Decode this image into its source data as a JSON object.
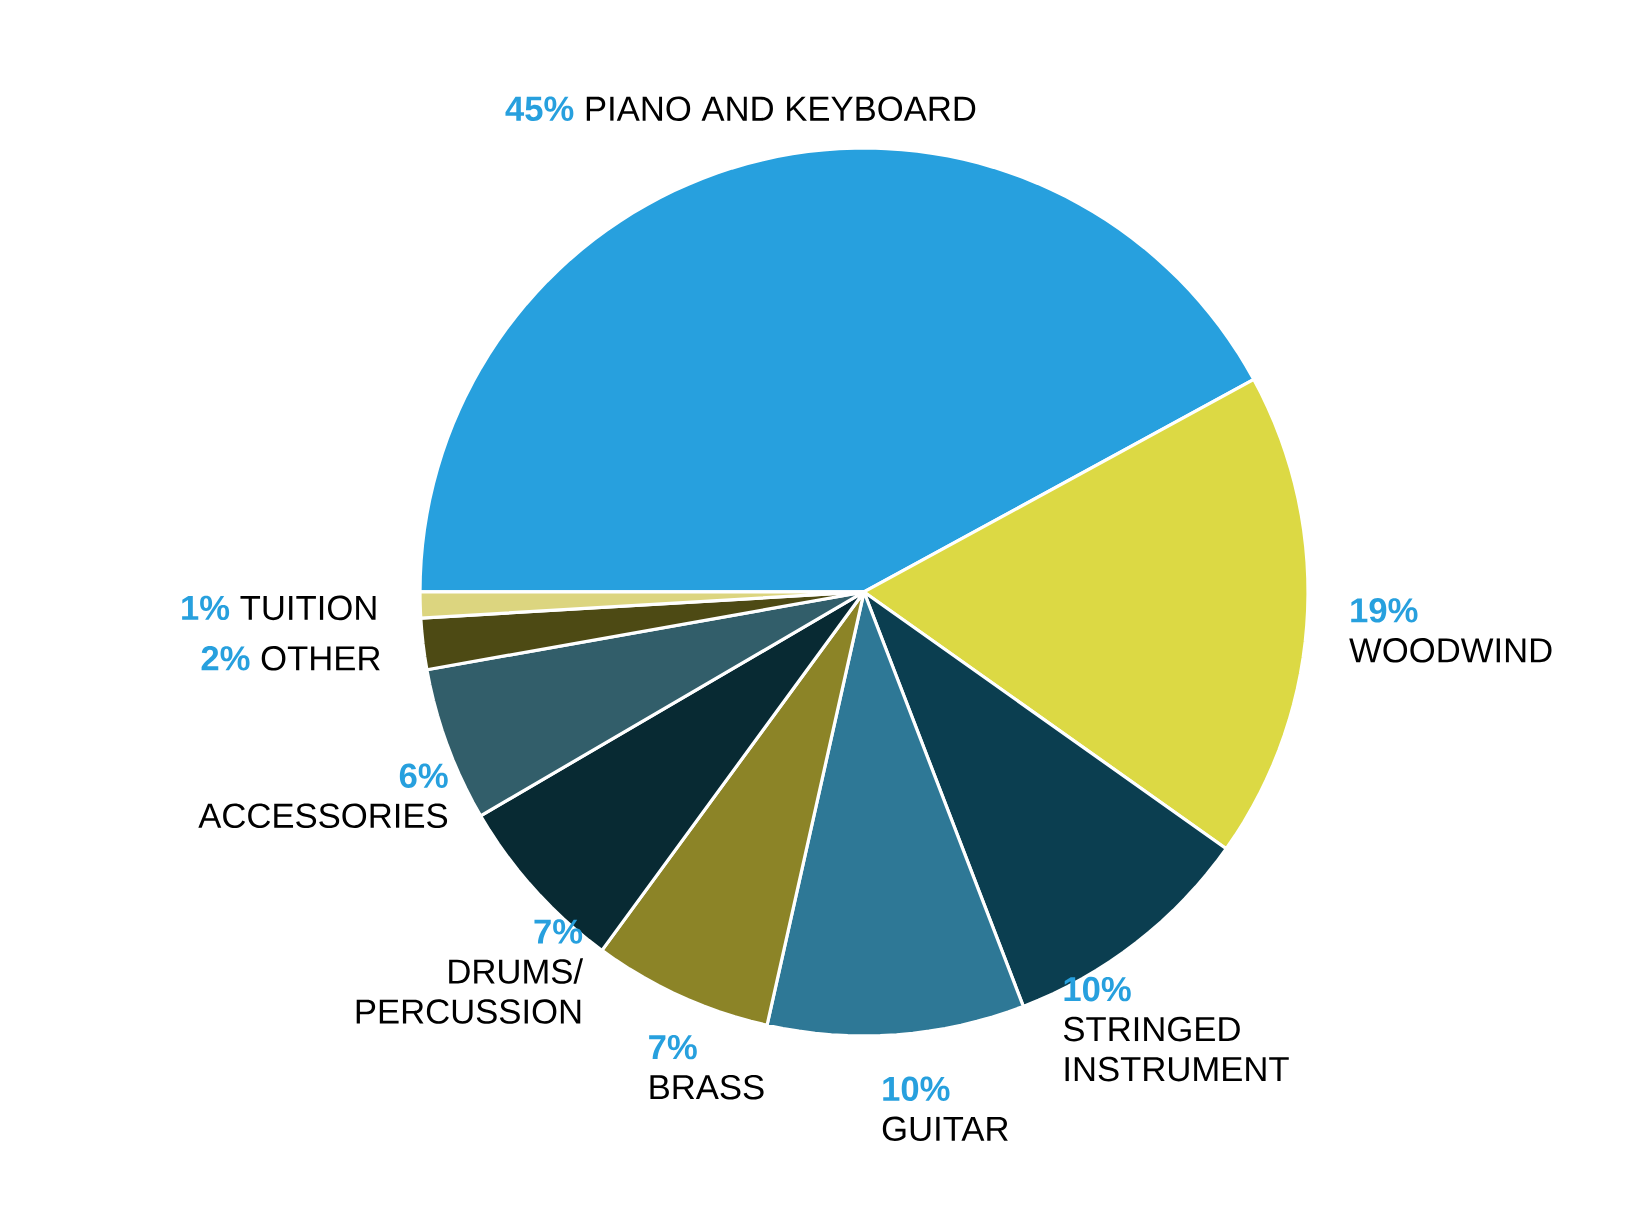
{
  "chart_data": {
    "type": "pie",
    "categories": [
      "PIANO AND KEYBOARD",
      "WOODWIND",
      "STRINGED INSTRUMENT",
      "GUITAR",
      "BRASS",
      "DRUMS/ PERCUSSION",
      "ACCESSORIES",
      "OTHER",
      "TUITION"
    ],
    "values": [
      45,
      19,
      10,
      10,
      7,
      7,
      6,
      2,
      1
    ],
    "colors": [
      "#27a0de",
      "#dcd944",
      "#0b3e50",
      "#2e7896",
      "#8c8427",
      "#082a33",
      "#325e6a",
      "#4d4a14",
      "#dcd57f"
    ],
    "value_labels": [
      "45%",
      "19%",
      "10%",
      "10%",
      "7%",
      "7%",
      "6%",
      "2%",
      "1%"
    ]
  }
}
